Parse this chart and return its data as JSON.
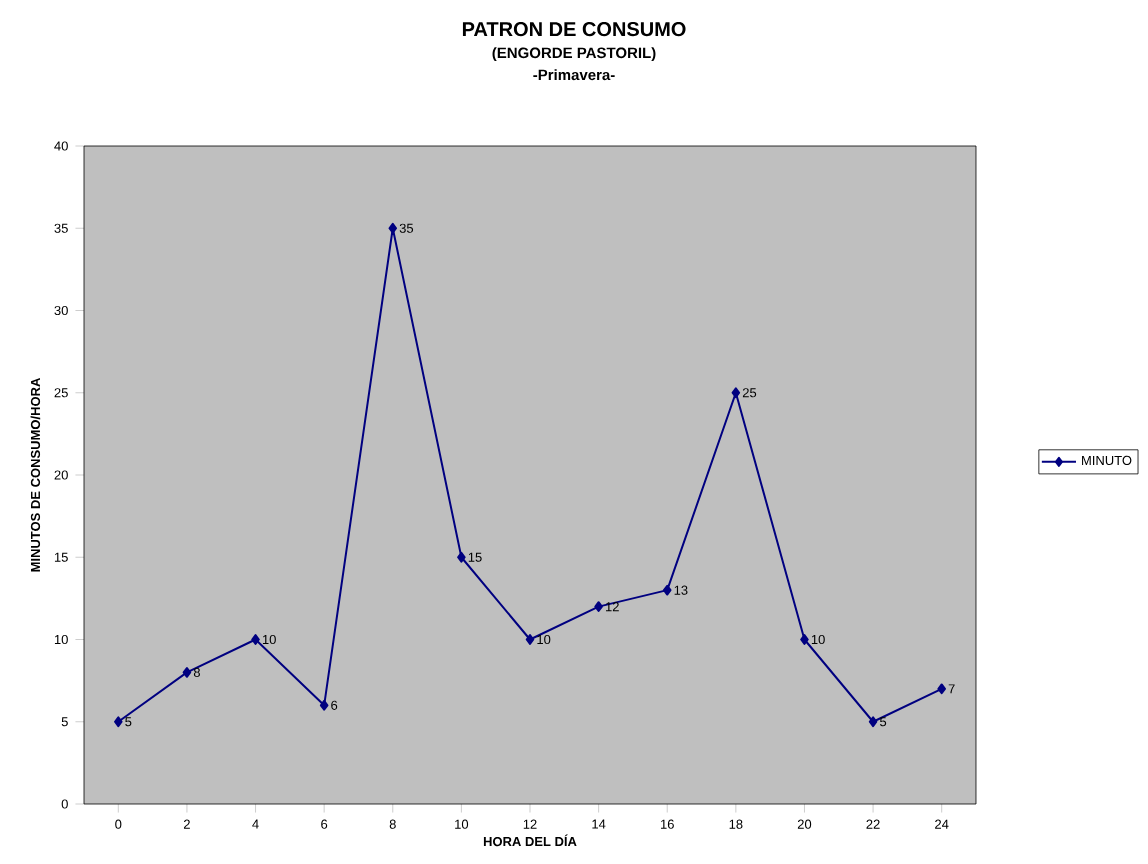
{
  "chart_data": {
    "type": "line",
    "title": "PATRON DE CONSUMO",
    "subtitle": "(ENGORDE  PASTORIL)",
    "annotations": [
      "-Primavera-"
    ],
    "xlabel": "HORA DEL DÍA",
    "ylabel": "MINUTOS DE CONSUMO/HORA",
    "categories": [
      "0",
      "2",
      "4",
      "6",
      "8",
      "10",
      "12",
      "14",
      "16",
      "18",
      "20",
      "22",
      "24"
    ],
    "series": [
      {
        "name": "MINUTO",
        "color": "#000080",
        "values": [
          5,
          8,
          10,
          6,
          35,
          15,
          10,
          12,
          13,
          25,
          10,
          5,
          7
        ]
      }
    ],
    "ylim": [
      0,
      40
    ],
    "yticks": [
      0,
      5,
      10,
      15,
      20,
      25,
      30,
      35,
      40
    ],
    "data_labels": true,
    "legend": "right",
    "marker": "diamond",
    "line_style": "solid",
    "grid": false
  }
}
